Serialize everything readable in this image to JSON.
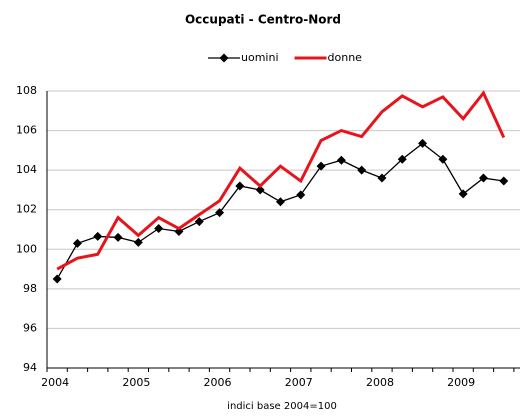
{
  "chart_data": {
    "type": "line",
    "title": "Occupati - Centro-Nord",
    "x_label": "indici base 2004=100",
    "categories": [
      "2004",
      null,
      null,
      null,
      "2005",
      null,
      null,
      null,
      "2006",
      null,
      null,
      null,
      "2007",
      null,
      null,
      null,
      "2008",
      null,
      null,
      null,
      "2009",
      null,
      null
    ],
    "series": [
      {
        "name": "uomini",
        "color": "#000000",
        "marker": "diamond",
        "values": [
          98.5,
          100.3,
          100.65,
          100.6,
          100.35,
          101.05,
          100.9,
          101.4,
          101.85,
          103.2,
          103.0,
          102.4,
          102.75,
          104.2,
          104.5,
          104.0,
          103.6,
          104.55,
          105.35,
          104.55,
          102.8,
          103.6,
          103.45
        ]
      },
      {
        "name": "donne",
        "color": "#e8141c",
        "values": [
          99.0,
          99.55,
          99.75,
          101.6,
          100.7,
          101.6,
          101.05,
          101.75,
          102.45,
          104.1,
          103.2,
          104.2,
          103.45,
          105.5,
          106.0,
          105.7,
          106.95,
          107.75,
          107.2,
          107.7,
          106.6,
          107.9,
          105.65
        ]
      }
    ],
    "ylim": [
      94,
      108
    ],
    "yticks": [
      94,
      96,
      98,
      100,
      102,
      104,
      106,
      108
    ],
    "grid": true,
    "legend": "top"
  }
}
